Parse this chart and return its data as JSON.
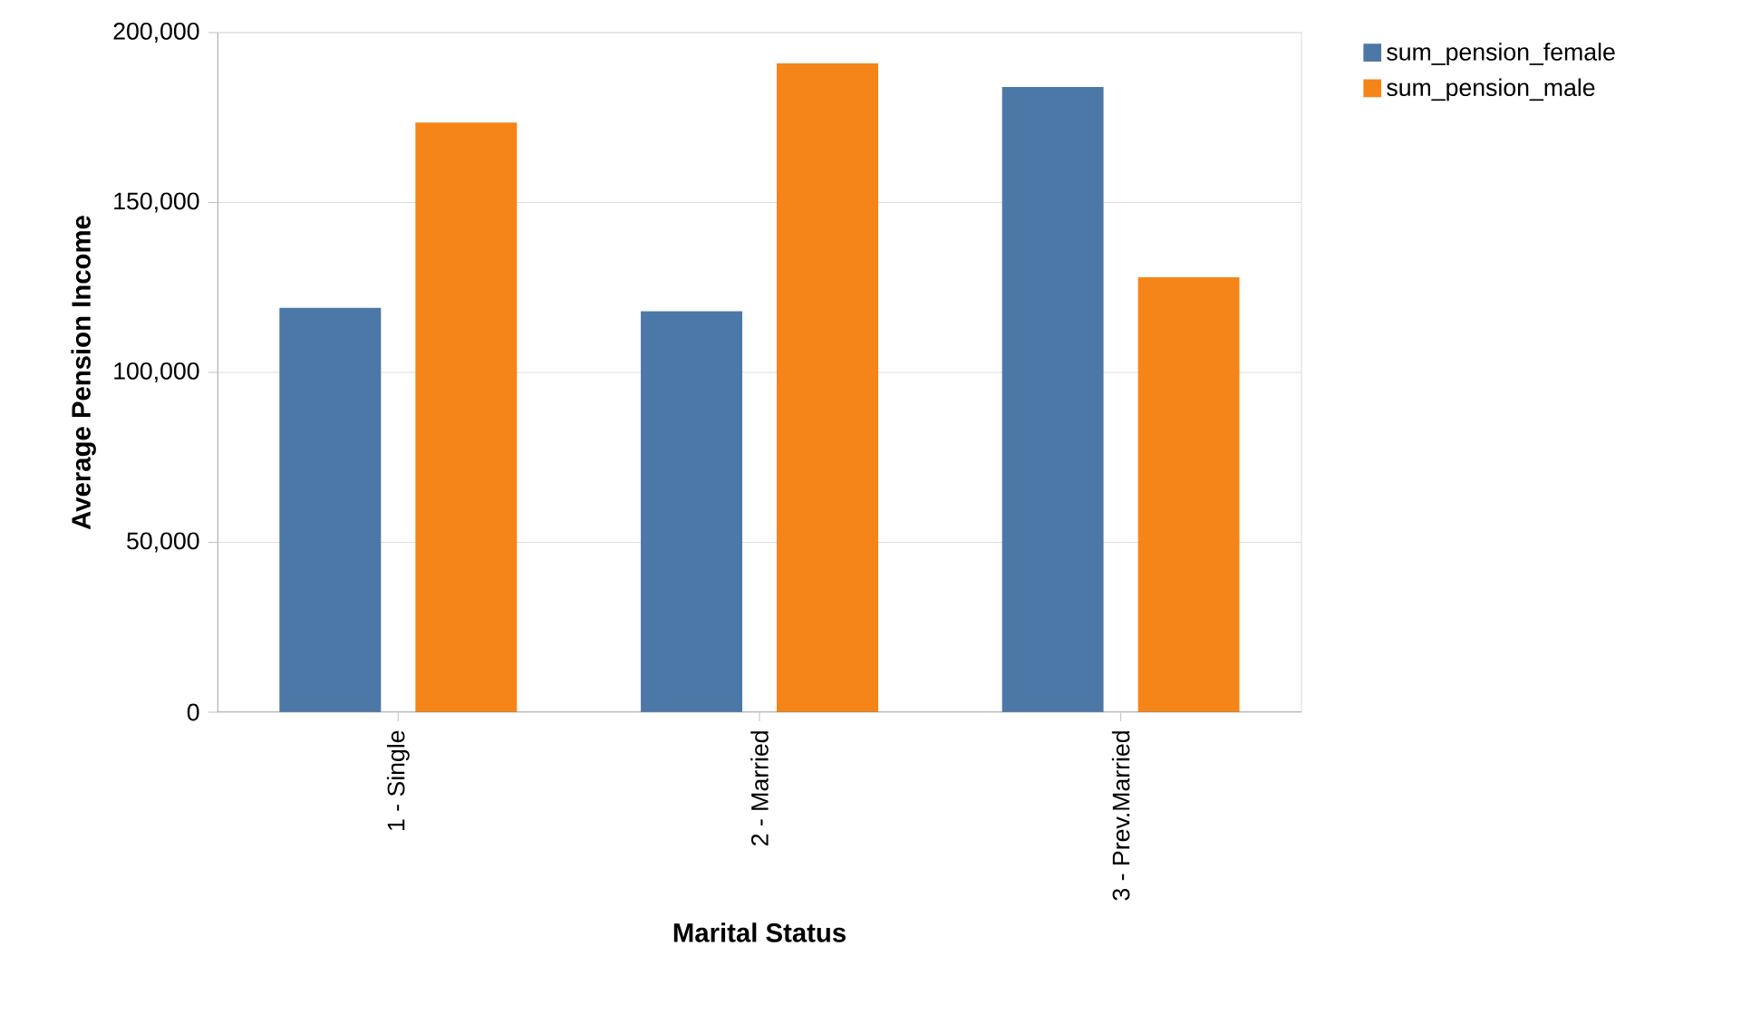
{
  "chart_data": {
    "type": "bar",
    "xlabel": "Marital Status",
    "ylabel": "Average Pension Income",
    "categories": [
      "1 - Single",
      "2 - Married",
      "3 - Prev.Married"
    ],
    "series": [
      {
        "name": "sum_pension_female",
        "color": "#4c78a8",
        "values": [
          119000,
          118000,
          184000
        ]
      },
      {
        "name": "sum_pension_male",
        "color": "#f58518",
        "values": [
          173500,
          191000,
          128000
        ]
      }
    ],
    "ylim": [
      0,
      200000
    ],
    "yticks": [
      {
        "value": 0,
        "label": "0"
      },
      {
        "value": 50000,
        "label": "50,000"
      },
      {
        "value": 100000,
        "label": "100,000"
      },
      {
        "value": 150000,
        "label": "150,000"
      },
      {
        "value": 200000,
        "label": "200,000"
      }
    ],
    "grid": "y",
    "legend": "top right"
  }
}
